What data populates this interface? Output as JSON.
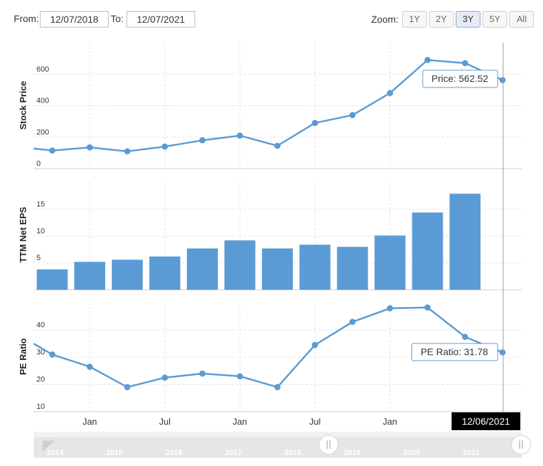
{
  "range": {
    "from_label": "From:",
    "from_value": "12/07/2018",
    "to_label": "To:",
    "to_value": "12/07/2021"
  },
  "zoom": {
    "label": "Zoom:",
    "buttons": [
      "1Y",
      "2Y",
      "3Y",
      "5Y",
      "All"
    ],
    "active": "3Y"
  },
  "colors": {
    "series": "#5b9bd5",
    "crosshair": "#9a9a9a",
    "grid": "#e0e0e0",
    "navigator_bg": "#e6e6e6",
    "date_badge_bg": "#000000"
  },
  "chart_data": [
    {
      "type": "line",
      "ylabel": "Stock Price",
      "ylim": [
        0,
        800
      ],
      "yticks": [
        0,
        200,
        400,
        600
      ],
      "x": [
        0,
        1,
        2,
        3,
        4,
        5,
        6,
        7,
        8,
        9,
        10,
        11,
        12
      ],
      "values": [
        115,
        135,
        110,
        140,
        180,
        210,
        145,
        290,
        340,
        480,
        690,
        670,
        562.52
      ],
      "lead_in_value": 128,
      "tooltip": "Price: 562.52"
    },
    {
      "type": "bar",
      "ylabel": "TTM Net EPS",
      "ylim": [
        0,
        20
      ],
      "yticks": [
        0,
        5,
        10,
        15
      ],
      "x": [
        0,
        1,
        2,
        3,
        4,
        5,
        6,
        7,
        8,
        9,
        10,
        11
      ],
      "values": [
        3.8,
        5.2,
        5.6,
        6.2,
        7.7,
        9.2,
        7.7,
        8.4,
        8.0,
        10.1,
        14.4,
        17.9
      ]
    },
    {
      "type": "line",
      "ylabel": "PE Ratio",
      "ylim": [
        10,
        50
      ],
      "yticks": [
        10,
        20,
        30,
        40
      ],
      "x": [
        0,
        1,
        2,
        3,
        4,
        5,
        6,
        7,
        8,
        9,
        10,
        11,
        12
      ],
      "values": [
        31,
        26.5,
        19,
        22.5,
        24,
        23,
        19,
        34.5,
        43,
        48,
        48.3,
        37.5,
        31.78
      ],
      "lead_in_value": 35,
      "tooltip": "PE Ratio: 31.78"
    }
  ],
  "x_axis": {
    "ticks": [
      {
        "label": "Jan",
        "pos": 1
      },
      {
        "label": "Jul",
        "pos": 3
      },
      {
        "label": "Jan",
        "pos": 5
      },
      {
        "label": "Jul",
        "pos": 7
      },
      {
        "label": "Jan",
        "pos": 9
      }
    ],
    "crosshair_label": "12/06/2021"
  },
  "navigator": {
    "years": [
      "2014",
      "2015",
      "2016",
      "2017",
      "2018",
      "2019",
      "2020",
      "2021"
    ]
  }
}
